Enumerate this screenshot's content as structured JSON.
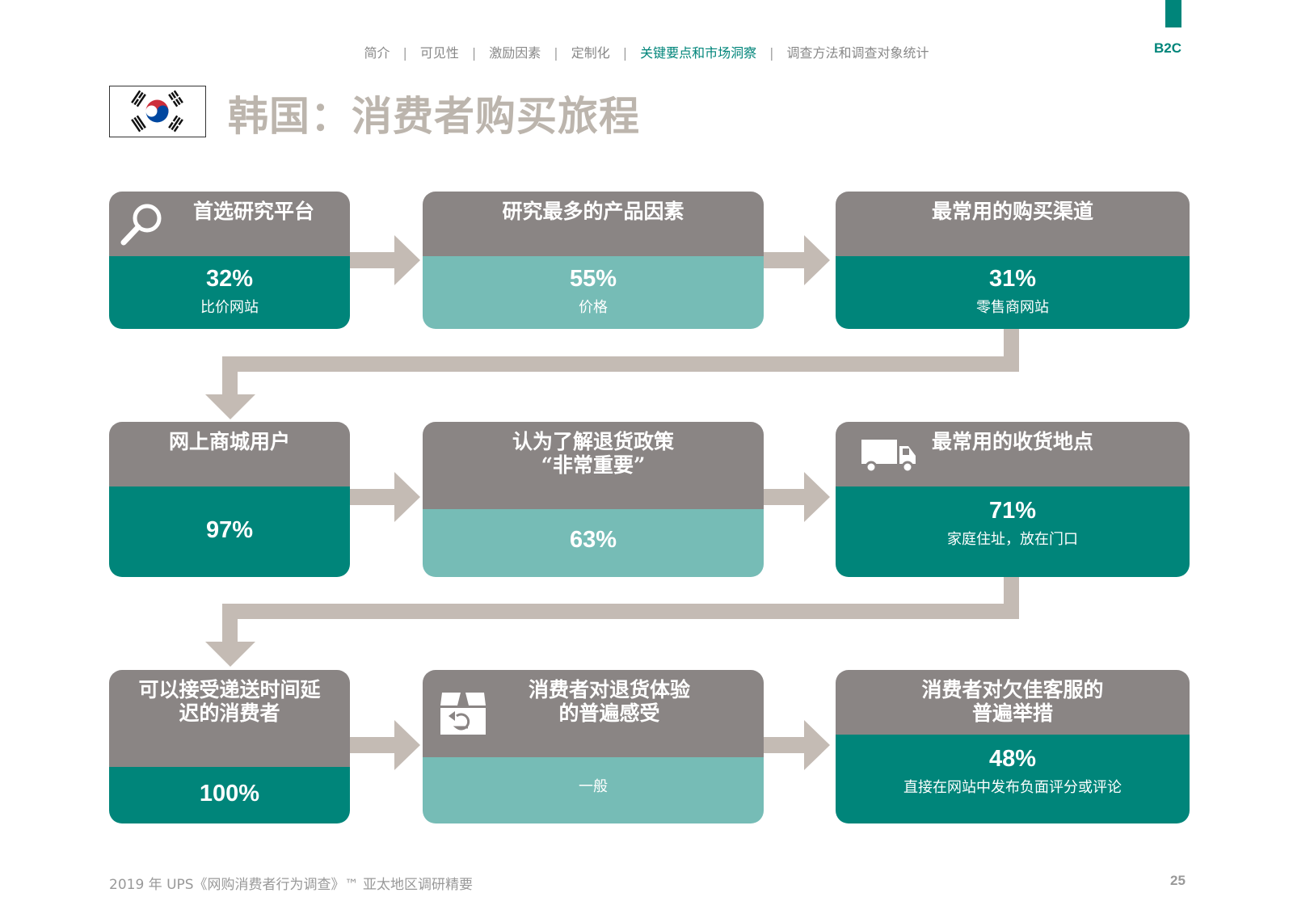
{
  "header": {
    "nav": [
      "简介",
      "可见性",
      "激励因素",
      "定制化",
      "关键要点和市场洞察",
      "调查方法和调查对象统计"
    ],
    "active_index": 4,
    "section_badge": "B2C"
  },
  "title": "韩国：消费者购买旅程",
  "cards": [
    {
      "title": [
        "首选研究平台"
      ],
      "value": "32%",
      "sub": "比价网站"
    },
    {
      "title": [
        "研究最多的产品因素"
      ],
      "value": "55%",
      "sub": "价格"
    },
    {
      "title": [
        "最常用的购买渠道"
      ],
      "value": "31%",
      "sub": "零售商网站"
    },
    {
      "title": [
        "网上商城用户"
      ],
      "value": "97%",
      "sub": ""
    },
    {
      "title": [
        "认为了解退货政策",
        "“非常重要”"
      ],
      "value": "63%",
      "sub": ""
    },
    {
      "title": [
        "最常用的收货地点"
      ],
      "value": "71%",
      "sub": "家庭住址，放在门口"
    },
    {
      "title": [
        "可以接受递送时间延",
        "迟的消费者"
      ],
      "value": "100%",
      "sub": ""
    },
    {
      "title": [
        "消费者对退货体验",
        "的普遍感受"
      ],
      "value": "",
      "sub": "一般"
    },
    {
      "title": [
        "消费者对欠佳客服的",
        "普遍举措"
      ],
      "value": "48%",
      "sub": "直接在网站中发布负面评分或评论"
    }
  ],
  "footer": {
    "source": "2019 年 UPS《网购消费者行为调查》™ 亚太地区调研精要",
    "page_number": "25"
  },
  "colors": {
    "dark_teal": "#00857a",
    "light_teal": "#76bcb6",
    "header_gray": "#8a8584",
    "arrow": "#c4bbb4",
    "title_gray": "#bcb5ad"
  }
}
